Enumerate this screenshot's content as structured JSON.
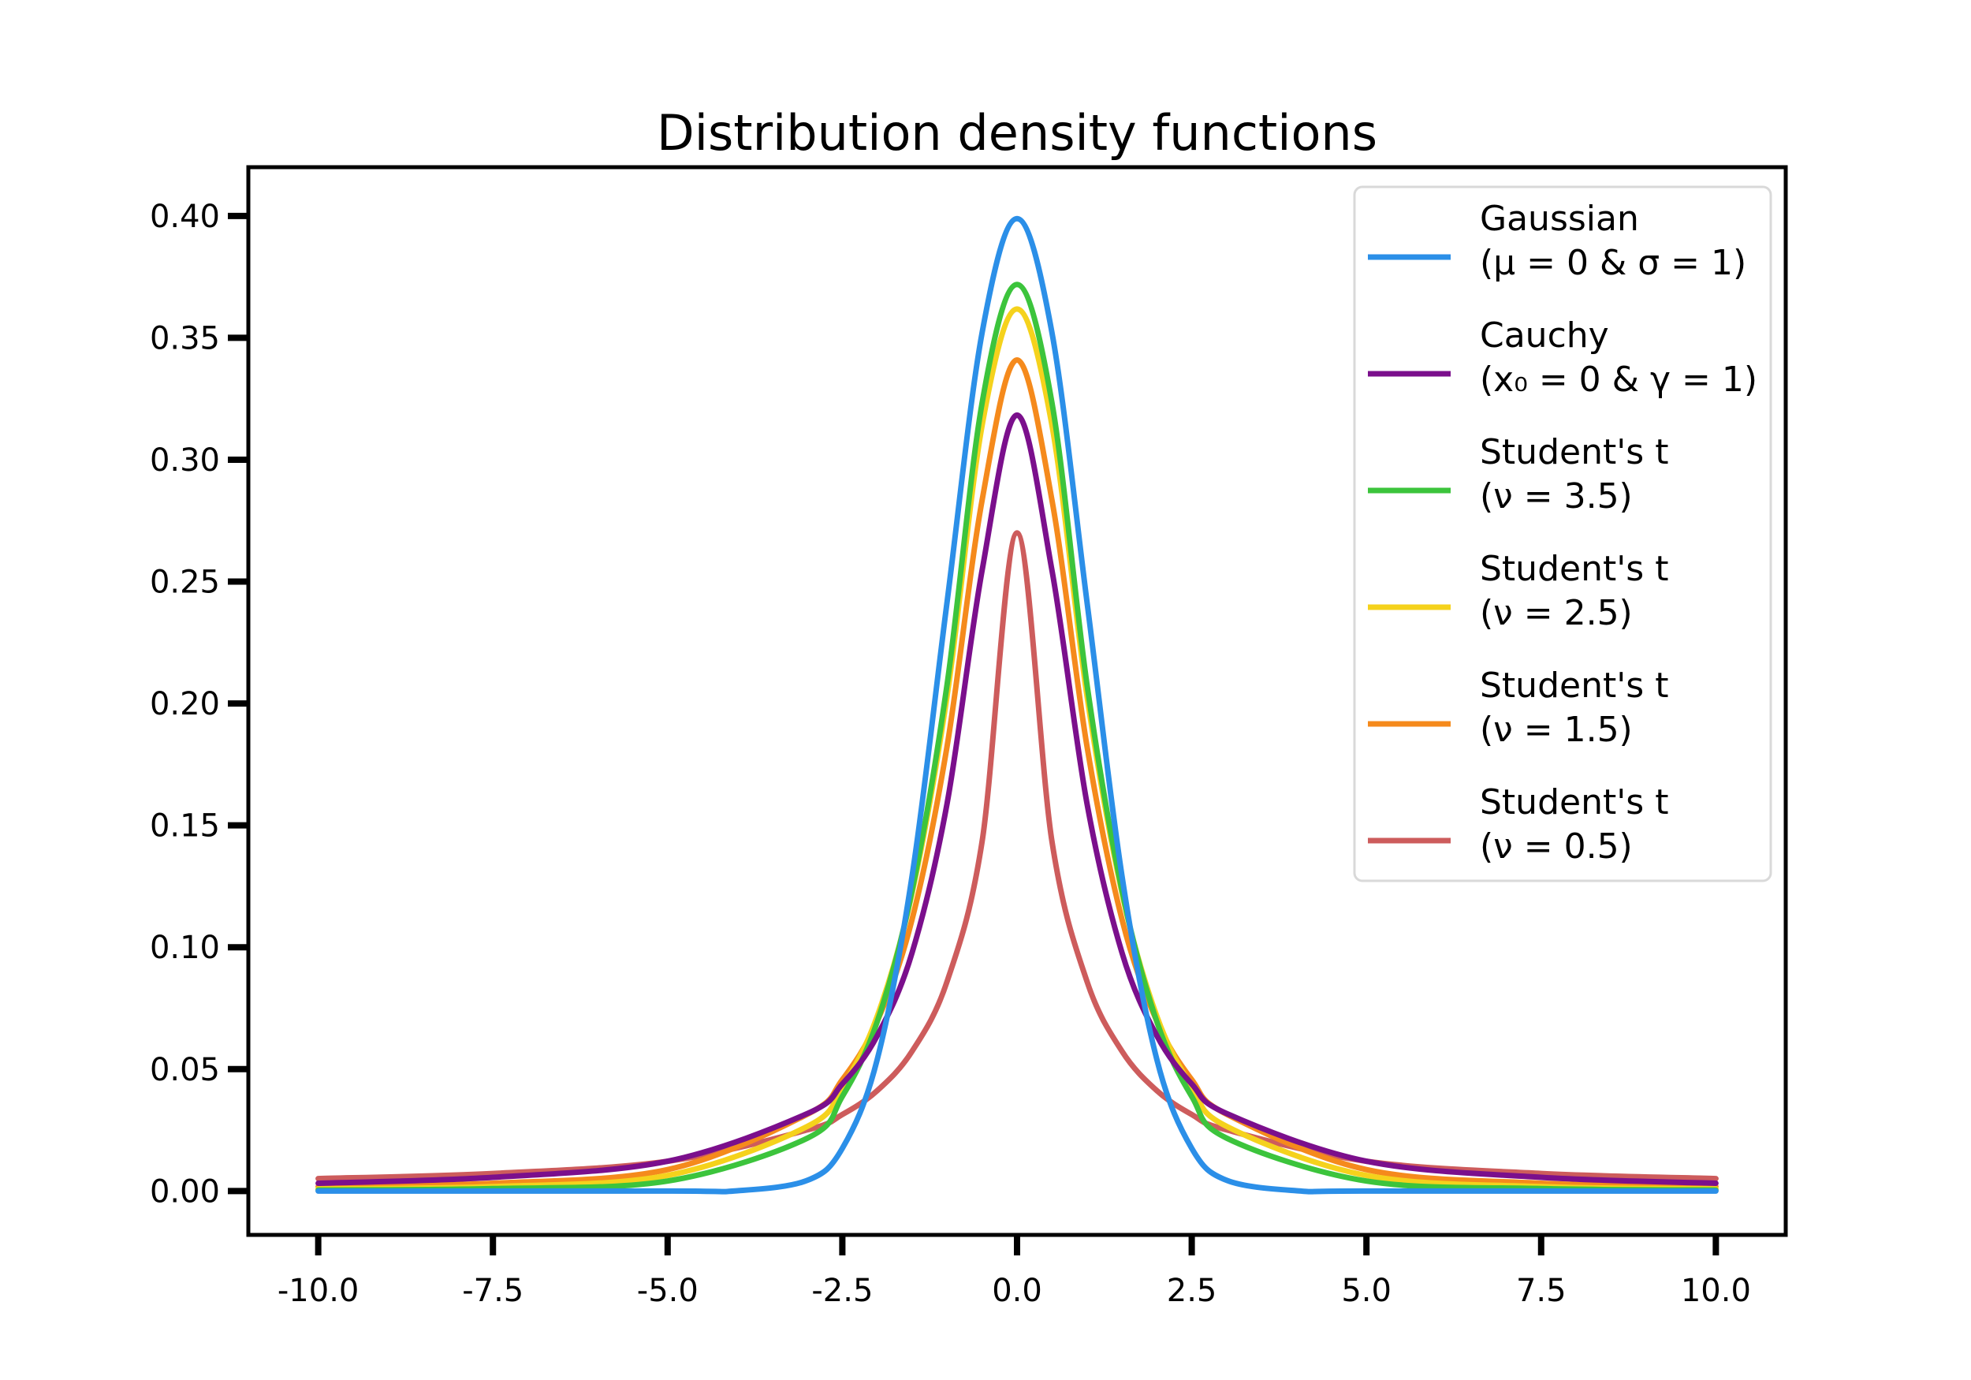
{
  "chart_data": {
    "type": "line",
    "title": "Distribution density functions",
    "xlabel": "",
    "ylabel": "",
    "xlim": [
      -11,
      11
    ],
    "ylim": [
      -0.018,
      0.42
    ],
    "x_ticks": [
      -10.0,
      -7.5,
      -5.0,
      -2.5,
      0.0,
      2.5,
      5.0,
      7.5,
      10.0
    ],
    "x_tick_labels": [
      "-10.0",
      "-7.5",
      "-5.0",
      "-2.5",
      "0.0",
      "2.5",
      "5.0",
      "7.5",
      "10.0"
    ],
    "y_ticks": [
      0.0,
      0.05,
      0.1,
      0.15,
      0.2,
      0.25,
      0.3,
      0.35,
      0.4
    ],
    "y_tick_labels": [
      "0.00",
      "0.05",
      "0.10",
      "0.15",
      "0.20",
      "0.25",
      "0.30",
      "0.35",
      "0.40"
    ],
    "grid": false,
    "legend_position": "top-right",
    "x_range": [
      -10,
      10
    ],
    "series": [
      {
        "name": "Gaussian",
        "legend_line2": "(μ = 0 & σ = 1)",
        "color": "#2b8fe8",
        "x": [
          -10,
          -5,
          -4,
          -3,
          -2.5,
          -2,
          -1.5,
          -1,
          -0.5,
          0,
          0.5,
          1,
          1.5,
          2,
          2.5,
          3,
          4,
          5,
          10
        ],
        "y": [
          0.0,
          0.0,
          0.0001,
          0.0044,
          0.0175,
          0.054,
          0.1295,
          0.242,
          0.3521,
          0.3989,
          0.3521,
          0.242,
          0.1295,
          0.054,
          0.0175,
          0.0044,
          0.0001,
          0.0,
          0.0
        ]
      },
      {
        "name": "Cauchy",
        "legend_line2": "(x₀ = 0 & γ = 1)",
        "color": "#7b0f8c",
        "x": [
          -10,
          -7.5,
          -5,
          -3,
          -2.5,
          -2,
          -1.5,
          -1,
          -0.5,
          0,
          0.5,
          1,
          1.5,
          2,
          2.5,
          3,
          5,
          7.5,
          10
        ],
        "y": [
          0.0032,
          0.0056,
          0.0122,
          0.0318,
          0.0439,
          0.0637,
          0.0979,
          0.1592,
          0.2546,
          0.3183,
          0.2546,
          0.1592,
          0.0979,
          0.0637,
          0.0439,
          0.0318,
          0.0122,
          0.0056,
          0.0032
        ]
      },
      {
        "name": "Student's t",
        "legend_line2": "(ν = 3.5)",
        "color": "#3cc43c",
        "x": [
          -10,
          -7.5,
          -5,
          -3,
          -2.5,
          -2,
          -1.5,
          -1,
          -0.5,
          0,
          0.5,
          1,
          1.5,
          2,
          2.5,
          3,
          5,
          7.5,
          10
        ],
        "y": [
          0.0004,
          0.001,
          0.0041,
          0.0217,
          0.0388,
          0.0695,
          0.1235,
          0.2081,
          0.3233,
          0.3719,
          0.3233,
          0.2081,
          0.1235,
          0.0695,
          0.0388,
          0.0217,
          0.0041,
          0.001,
          0.0004
        ]
      },
      {
        "name": "Student's t",
        "legend_line2": "(ν = 2.5)",
        "color": "#f5d21c",
        "x": [
          -10,
          -7.5,
          -5,
          -3,
          -2.5,
          -2,
          -1.5,
          -1,
          -0.5,
          0,
          0.5,
          1,
          1.5,
          2,
          2.5,
          3,
          5,
          7.5,
          10
        ],
        "y": [
          0.0009,
          0.0018,
          0.0064,
          0.0265,
          0.0428,
          0.0717,
          0.1225,
          0.2034,
          0.3141,
          0.3618,
          0.3141,
          0.2034,
          0.1225,
          0.0717,
          0.0428,
          0.0265,
          0.0064,
          0.0018,
          0.0009
        ]
      },
      {
        "name": "Student's t",
        "legend_line2": "(ν = 1.5)",
        "color": "#f58a1c",
        "x": [
          -10,
          -7.5,
          -5,
          -3,
          -2.5,
          -2,
          -1.5,
          -1,
          -0.5,
          0,
          0.5,
          1,
          1.5,
          2,
          2.5,
          3,
          5,
          7.5,
          10
        ],
        "y": [
          0.0018,
          0.0032,
          0.0088,
          0.0315,
          0.0457,
          0.0697,
          0.1116,
          0.1827,
          0.2834,
          0.3409,
          0.2834,
          0.1827,
          0.1116,
          0.0697,
          0.0457,
          0.0315,
          0.0088,
          0.0032,
          0.0018
        ]
      },
      {
        "name": "Student's t",
        "legend_line2": "(ν = 0.5)",
        "color": "#cd5c5c",
        "x": [
          -10,
          -7.5,
          -5,
          -3,
          -2.5,
          -2,
          -1.5,
          -1,
          -0.5,
          0,
          0.5,
          1,
          1.5,
          2,
          2.5,
          3,
          5,
          7.5,
          10
        ],
        "y": [
          0.0051,
          0.0072,
          0.0122,
          0.0251,
          0.0314,
          0.0412,
          0.0574,
          0.0861,
          0.1434,
          0.27,
          0.1434,
          0.0861,
          0.0574,
          0.0412,
          0.0314,
          0.0251,
          0.0122,
          0.0072,
          0.0051
        ]
      }
    ]
  }
}
